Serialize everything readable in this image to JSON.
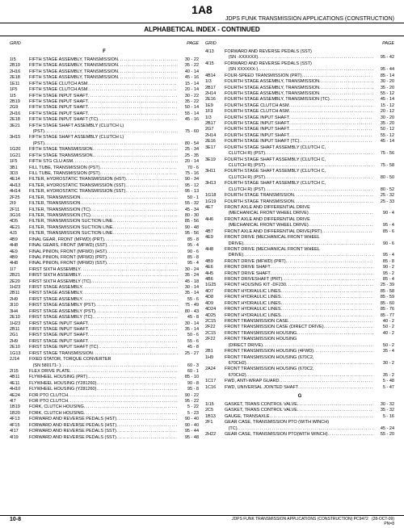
{
  "page_number_top": "1A8",
  "header_right": "JDPS FUNK TRANSMISSION APPLICATIONS (CONSTRUCTION)",
  "subheader": "ALPHABETICAL INDEX - CONTINUED",
  "col_head_left": "GRID",
  "col_head_right": "PAGE",
  "section_F": "F",
  "section_G": "G",
  "footer_left": "10-8",
  "footer_center": "JDPS FUNK TRANSMISSION APPLICATIONS (CONSTRUCTION)   PC9472",
  "footer_date": "(28-OCT-09)",
  "footer_pn": "PN=8",
  "left_entries": [
    {
      "g": "1I5",
      "d": "FIFTH STAGE ASSEMBLY, TRANSMISSION",
      "p": "30 - 22"
    },
    {
      "g": "2B19",
      "d": "FIFTH STAGE ASSEMBLY, TRANSMISSION",
      "p": "35 - 22"
    },
    {
      "g": "2H16",
      "d": "FIFTH STAGE ASSEMBLY, TRANSMISSION",
      "p": "40 - 14"
    },
    {
      "g": "2E18",
      "d": "FIFTH STAGE ASSEMBLY, TRANSMISSION",
      "p": "45 - 16"
    },
    {
      "g": "1E11",
      "d": "FIFTH STAGE CLUTCH ASM",
      "p": "15 - 14"
    },
    {
      "g": "1F5",
      "d": "FIFTH STAGE CLUTCH ASM",
      "p": "20 - 14"
    },
    {
      "g": "1I5",
      "d": "FIFTH STAGE INPUT SHAFT",
      "p": "30 - 22"
    },
    {
      "g": "2B19",
      "d": "FIFTH STAGE INPUT SHAFT",
      "p": "35 - 22"
    },
    {
      "g": "2G9",
      "d": "FIFTH STAGE INPUT SHAFT",
      "p": "50 - 14"
    },
    {
      "g": "2H16",
      "d": "FIFTH STAGE INPUT SHAFT",
      "p": "55 - 14"
    },
    {
      "g": "2E18",
      "d": "FIFTH STAGE INPUT SHAFT (TC)",
      "p": "45 - 16"
    },
    {
      "g": "3E21",
      "d": "FIFTH STAGE SHAFT ASSEMBLY (CLUTCH L)",
      "p": "",
      "nodots": true
    },
    {
      "g": "",
      "d": "   (PST)",
      "p": "75 - 60"
    },
    {
      "g": "3H15",
      "d": "FIFTH STAGE SHAFT ASSEMBLY (CLUTCH L)",
      "p": "",
      "nodots": true
    },
    {
      "g": "",
      "d": "   (PST)",
      "p": "80 - 54"
    },
    {
      "g": "1G20",
      "d": "FIFTH STAGE TRANSMISSION",
      "p": "25 - 34"
    },
    {
      "g": "1G21",
      "d": "FIFTH STAGE TRANSMISSION",
      "p": "25 - 35"
    },
    {
      "g": "1F5",
      "d": "FIFTH STG CLU ASM",
      "p": "20 - 14"
    },
    {
      "g": "3B1",
      "d": "FILL TUBE, TRANSMISSION (PST)",
      "p": "70 - 6"
    },
    {
      "g": "3D3",
      "d": "FILL TUBE, TRANSMISSION (PST)",
      "p": "75 - 16"
    },
    {
      "g": "4E14",
      "d": "FILTER, HYDROSTATIC TRANSMISSION (HST)",
      "p": "90 - 34"
    },
    {
      "g": "4H13",
      "d": "FILTER, HYDROSTATIC TRANSMISSION (SST)",
      "p": "95 - 12"
    },
    {
      "g": "4H14",
      "d": "FILTER, HYDROSTATIC TRANSMISSION (SST)",
      "p": "95 - 13"
    },
    {
      "g": "2F25",
      "d": "FILTER, TRANSMISSION",
      "p": "50 - 1"
    },
    {
      "g": "2I9",
      "d": "FILTER, TRANSMISSION",
      "p": "55 - 32"
    },
    {
      "g": "2F11",
      "d": "FILTER, TRANSMISSION (TC)",
      "p": "45 - 34"
    },
    {
      "g": "3G16",
      "d": "FILTER, TRANSMISSION (TC)",
      "p": "80 - 30"
    },
    {
      "g": "4D5",
      "d": "FILTER, TRANSMISSION SUCTION LINE",
      "p": "85 - 56"
    },
    {
      "g": "4E21",
      "d": "FILTER, TRANSMISSION SUCTION LINE",
      "p": "90 - 48"
    },
    {
      "g": "4J3",
      "d": "FILTER, TRANSMISSION SUCTION LINE",
      "p": "95 - 56"
    },
    {
      "g": "4B9",
      "d": "FINAL GEAR, FRONT (MFWD) (PRT)",
      "p": "85 - 8"
    },
    {
      "g": "4H8",
      "d": "FINAL GEARS, FRONT (MFWD) (SST)",
      "p": "95 - 4"
    },
    {
      "g": "4E9",
      "d": "FINAL PINION, FRONT (MFWD) (HST)",
      "p": "90 - 6"
    },
    {
      "g": "4B9",
      "d": "FINAL PINION, FRONT (MFWD) (PRT)",
      "p": "85 - 8"
    },
    {
      "g": "4H8",
      "d": "FINAL PINION, FRONT (MFWD) (SST)",
      "p": "95 - 4"
    },
    {
      "g": "1I7",
      "d": "FIRST SIXTH ASSEMBLY",
      "p": "30 - 24"
    },
    {
      "g": "2B21",
      "d": "FIRST SIXTH ASSEMBLY",
      "p": "35 - 24"
    },
    {
      "g": "2E20",
      "d": "FIRST SIXTH ASSEMBLY (TC)",
      "p": "45 - 18"
    },
    {
      "g": "1H23",
      "d": "FIRST STAGE ASSEMBLY",
      "p": "30 - 14"
    },
    {
      "g": "2B11",
      "d": "FIRST STAGE ASSEMBLY",
      "p": "35 - 14"
    },
    {
      "g": "2H9",
      "d": "FIRST STAGE ASSEMBLY",
      "p": "55 - 6"
    },
    {
      "g": "3I10",
      "d": "FIRST STAGE ASSEMBLY (PST)",
      "p": "75 - 49"
    },
    {
      "g": "3H4",
      "d": "FIRST STAGE ASSEMBLY (PST)",
      "p": "80 - 43"
    },
    {
      "g": "2E10",
      "d": "FIRST STAGE ASSEMBLY (TC)",
      "p": "45 - 8"
    },
    {
      "g": "1H23",
      "d": "FIRST STAGE INPUT SHAFT",
      "p": "30 - 14"
    },
    {
      "g": "2B11",
      "d": "FIRST STAGE INPUT SHAFT",
      "p": "35 - 14"
    },
    {
      "g": "2G1",
      "d": "FIRST STAGE INPUT SHAFT",
      "p": "50 - 6"
    },
    {
      "g": "2H9",
      "d": "FIRST STAGE INPUT SHAFT",
      "p": "55 - 6"
    },
    {
      "g": "2E10",
      "d": "FIRST STAGE INPUT SHAFT (TC)",
      "p": "45 - 8"
    },
    {
      "g": "1G13",
      "d": "FIRST STAGE TRANSMISSION",
      "p": "25 - 27"
    },
    {
      "g": "2J14",
      "d": "FIXED STATOR, TORQUE CONVERTER",
      "p": "",
      "nodots": true
    },
    {
      "g": "",
      "d": "   (SN 580171- )",
      "p": "60 - 3"
    },
    {
      "g": "2I15",
      "d": "FLEX DRIVE PLATE",
      "p": "60 - 1"
    },
    {
      "g": "4B11",
      "d": "FLYWHEEL HOUSING (PRT)",
      "p": "85 - 10"
    },
    {
      "g": "4E11",
      "d": "FLYWHEEL HOUSING (Y281260)",
      "p": "90 - 8"
    },
    {
      "g": "4H10",
      "d": "FLYWHEEL HOUSING (Y281260)",
      "p": "95 - 8"
    },
    {
      "g": "4E24",
      "d": "FOR PTO CLUTCH",
      "p": "90 - 22"
    },
    {
      "g": "4I7",
      "d": "FOR PTO CLUTCH",
      "p": "95 - 22"
    },
    {
      "g": "1B19",
      "d": "FORK, CLUTCH HOUSING",
      "p": "5 - 22"
    },
    {
      "g": "1B20",
      "d": "FORK, CLUTCH HOUSING",
      "p": "5 - 23"
    },
    {
      "g": "4F13",
      "d": "FORWARD AND REVERSE PEDALS (HST)",
      "p": "90 - 40"
    },
    {
      "g": "4F15",
      "d": "FORWARD AND REVERSE PEDALS (HST)",
      "p": "90 - 40"
    },
    {
      "g": "4I17",
      "d": "FORWARD AND REVERSE PEDALS (SST)",
      "p": "95 - 44"
    },
    {
      "g": "4I19",
      "d": "FORWARD AND REVERSE PEDALS (SST)",
      "p": "95 - 48"
    }
  ],
  "right_entries": [
    {
      "g": "4I13",
      "d": "FORWARD AND REVERSE PEDALS (SST)",
      "p": "",
      "nodots": true
    },
    {
      "g": "",
      "d": "   (SN -XXXXXX)",
      "p": "95 - 42"
    },
    {
      "g": "4I15",
      "d": "FORWARD AND REVERSE PEDALS (SST)",
      "p": "",
      "nodots": true
    },
    {
      "g": "",
      "d": "   (SN XXXXXX-)",
      "p": "95 - 44"
    },
    {
      "g": "4B14",
      "d": "FOUR-SPEED TRANSMISSION (PRT)",
      "p": "85 - 14"
    },
    {
      "g": "1I3",
      "d": "FOURTH STAGE ASSEMBLY, TRANSMISSION",
      "p": "30 - 20"
    },
    {
      "g": "2B17",
      "d": "FOURTH STAGE ASSEMBLY, TRANSMISSION",
      "p": "35 - 20"
    },
    {
      "g": "2H14",
      "d": "FOURTH STAGE ASSEMBLY, TRANSMISSION",
      "p": "55 - 12"
    },
    {
      "g": "2E16",
      "d": "FOURTH STAGE ASSEMBLY, TRANSMISSION (TC)",
      "p": "45 - 14"
    },
    {
      "g": "1E9",
      "d": "FOURTH STAGE CLUTCH ASM",
      "p": "15 - 12"
    },
    {
      "g": "1F3",
      "d": "FOURTH STAGE CLUTCH ASM",
      "p": "20 - 12"
    },
    {
      "g": "1I3",
      "d": "FOURTH STAGE INPUT SHAFT",
      "p": "30 - 20"
    },
    {
      "g": "2B17",
      "d": "FOURTH STAGE INPUT SHAFT",
      "p": "35 - 20"
    },
    {
      "g": "2G7",
      "d": "FOURTH STAGE INPUT SHAFT",
      "p": "50 - 12"
    },
    {
      "g": "2H14",
      "d": "FOURTH STAGE INPUT SHAFT",
      "p": "55 - 12"
    },
    {
      "g": "2E16",
      "d": "FOURTH STAGE INPUT SHAFT (TC)",
      "p": "45 - 14"
    },
    {
      "g": "3E17",
      "d": "FOURTH STAGE SHAFT ASSEMBLY (CLUTCH C,",
      "p": "",
      "nodots": true
    },
    {
      "g": "",
      "d": "   CLUTCH R) (PST)",
      "p": "75 - 56"
    },
    {
      "g": "3E19",
      "d": "FOURTH STAGE SHAFT ASSEMBLY (CLUTCH C,",
      "p": "",
      "nodots": true
    },
    {
      "g": "",
      "d": "   CLUTCH R) (PST)",
      "p": "75 - 58"
    },
    {
      "g": "3H11",
      "d": "FOURTH STAGE SHAFT ASSEMBLY (CLUTCH C,",
      "p": "",
      "nodots": true
    },
    {
      "g": "",
      "d": "   CLUTCH R) (PST)",
      "p": "80 - 50"
    },
    {
      "g": "3H13",
      "d": "FOURTH STAGE SHAFT ASSEMBLY (CLUTCH C,",
      "p": "",
      "nodots": true
    },
    {
      "g": "",
      "d": "   CLUTCH R) (PST)",
      "p": "80 - 52"
    },
    {
      "g": "1G18",
      "d": "FOURTH STAGE TRANSMISSION",
      "p": "25 - 32"
    },
    {
      "g": "1G19",
      "d": "FOURTH STAGE TRANSMISSION",
      "p": "25 - 33"
    },
    {
      "g": "4E7",
      "d": "FRONT AXLE AND DIFFERENTIAL DRIVE",
      "p": "",
      "nodots": true
    },
    {
      "g": "",
      "d": "   (MECHANICAL FRONT WHEEL DRIVE)",
      "p": "90 - 4"
    },
    {
      "g": "4H6",
      "d": "FRONT AXLE AND DIFFERENTIAL DRIVE",
      "p": "",
      "nodots": true
    },
    {
      "g": "",
      "d": "   (MECHANICAL FRONT WHEEL DRIVE)",
      "p": "95 - 4"
    },
    {
      "g": "4B7",
      "d": "FRONT AXLE AND DIFFERENTIAL DRIVE(PRT)",
      "p": "85 - 6"
    },
    {
      "g": "4E9",
      "d": "FRONT DRIVE (MECHANICAL FRONT WHEEL",
      "p": "",
      "nodots": true
    },
    {
      "g": "",
      "d": "   DRIVE)",
      "p": "90 - 6"
    },
    {
      "g": "4H8",
      "d": "FRONT DRIVE (MECHANICAL FRONT WHEEL",
      "p": "",
      "nodots": true
    },
    {
      "g": "",
      "d": "   DRIVE)",
      "p": "95 - 4"
    },
    {
      "g": "4B9",
      "d": "FRONT DRIVE (MFWD) (PRT)",
      "p": "85 - 8"
    },
    {
      "g": "4E6",
      "d": "FRONT DRIVE SHAFT",
      "p": "90 - 2"
    },
    {
      "g": "4H5",
      "d": "FRONT DRIVE SHAFT",
      "p": "95 - 2"
    },
    {
      "g": "4B6",
      "d": "FRONT DRIVESHAFT (PRT)",
      "p": "85 - 4"
    },
    {
      "g": "1G25",
      "d": "FRONT HOUSING KIT -DF230",
      "p": "25 - 39"
    },
    {
      "g": "4D7",
      "d": "FRONT HYDRAULIC LINES",
      "p": "85 - 58"
    },
    {
      "g": "4D8",
      "d": "FRONT HYDRAULIC LINES",
      "p": "85 - 59"
    },
    {
      "g": "4D9",
      "d": "FRONT HYDRAULIC LINES",
      "p": "85 - 60"
    },
    {
      "g": "4D24",
      "d": "FRONT HYDRAULIC LINES",
      "p": "85 - 76"
    },
    {
      "g": "4D25",
      "d": "FRONT HYDRAULIC LINES",
      "p": "85 - 77"
    },
    {
      "g": "2C15",
      "d": "FRONT TRANSMISSION CASE",
      "p": "40 - 2"
    },
    {
      "g": "2F22",
      "d": "FRONT TRANSMISSION CASE (DIRECT DRIVE)",
      "p": "50 - 2"
    },
    {
      "g": "2C15",
      "d": "FRONT TRANSMISSION HOUSING",
      "p": "40 - 2"
    },
    {
      "g": "2F22",
      "d": "FRONT TRANSMISSION HOUSING",
      "p": "",
      "nodots": true
    },
    {
      "g": "",
      "d": "   (DIRECT DRIVE)",
      "p": "50 - 2"
    },
    {
      "g": "2B1",
      "d": "FRONT TRANSMISSION HOUSING (4FWD)",
      "p": "35 - 4"
    },
    {
      "g": "1H9",
      "d": "FRONT TRANSMISSION HOUSING (670C2,",
      "p": "",
      "nodots": true
    },
    {
      "g": "",
      "d": "   670CH2)",
      "p": "30 - 2"
    },
    {
      "g": "2A24",
      "d": "FRONT TRANSMISSION HOUSING (670C2,",
      "p": "",
      "nodots": true
    },
    {
      "g": "",
      "d": "   670CH2)",
      "p": "35 - 2"
    },
    {
      "g": "1C17",
      "d": "FWD, ANTI-WRAP GUARD",
      "p": "5 - 48"
    },
    {
      "g": "1C16",
      "d": "FWD, UNIVERSAL JOINTED SHAFT",
      "p": "5 - 47"
    }
  ],
  "g_entries": [
    {
      "g": "1I15",
      "d": "GASKET, TRANS CONTROL VALVE",
      "p": "30 - 32"
    },
    {
      "g": "2C5",
      "d": "GASKET, TRANS CONTROL VALVE",
      "p": "35 - 32"
    },
    {
      "g": "1B13",
      "d": "GAUGE, TRANSAXLE",
      "p": "5 - 16"
    },
    {
      "g": "2F1",
      "d": "GEAR CASE, TRANSMISSION PTO (WITH WINCH)",
      "p": "",
      "nodots": true
    },
    {
      "g": "",
      "d": "   (TC)",
      "p": "45 - 24"
    },
    {
      "g": "2H22",
      "d": "GEAR CASE, TRANSMISSION PTO(WITH WINCH)",
      "p": "55 - 20"
    }
  ]
}
